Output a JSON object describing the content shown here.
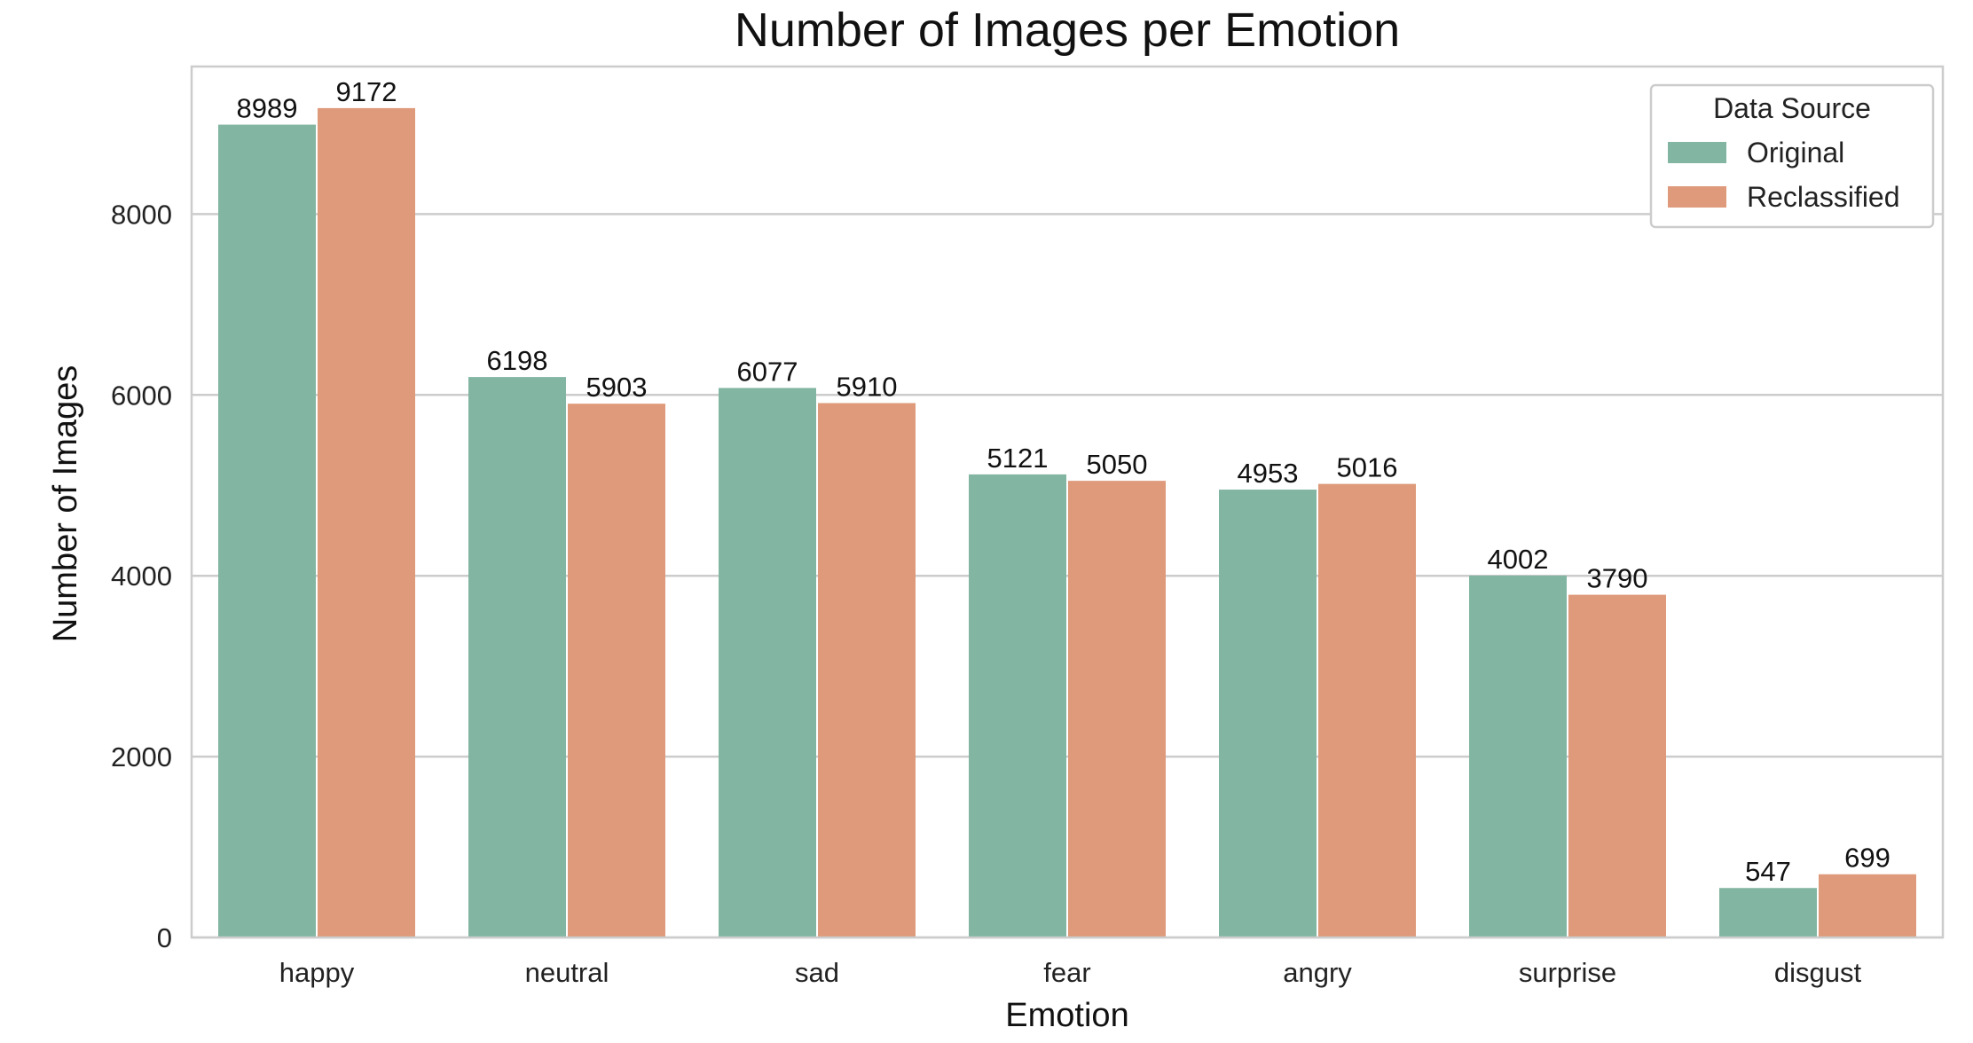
{
  "chart_data": {
    "type": "bar",
    "title": "Number of Images per Emotion",
    "xlabel": "Emotion",
    "ylabel": "Number of Images",
    "categories": [
      "happy",
      "neutral",
      "sad",
      "fear",
      "angry",
      "surprise",
      "disgust"
    ],
    "series": [
      {
        "name": "Original",
        "color": "#82b5a2",
        "values": [
          8989,
          6198,
          6077,
          5121,
          4953,
          4002,
          547
        ]
      },
      {
        "name": "Reclassified",
        "color": "#de9a7a",
        "values": [
          9172,
          5903,
          5910,
          5050,
          5016,
          3790,
          699
        ]
      }
    ],
    "ylim": [
      0,
      9632
    ],
    "yticks": [
      0,
      2000,
      4000,
      6000,
      8000
    ],
    "grid": "horizontal",
    "legend": {
      "title": "Data Source",
      "placement": "top-right"
    },
    "data_labels": true
  }
}
